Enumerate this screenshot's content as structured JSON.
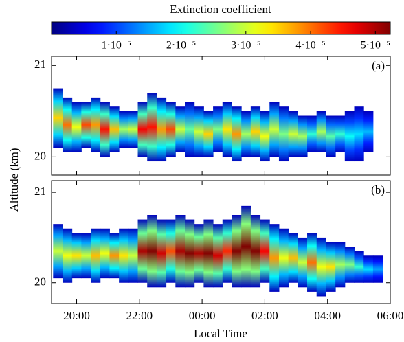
{
  "chart_data": {
    "type": "heatmap",
    "colorbar_label": "Extinction coefficient",
    "zlim": [
      0,
      5.23e-05
    ],
    "zticks": [
      {
        "value": 1e-05,
        "label": "1·10⁻⁵"
      },
      {
        "value": 2e-05,
        "label": "2·10⁻⁵"
      },
      {
        "value": 3e-05,
        "label": "3·10⁻⁵"
      },
      {
        "value": 4e-05,
        "label": "4·10⁻⁵"
      },
      {
        "value": 5e-05,
        "label": "5·10⁻⁵"
      }
    ],
    "x_label": "Local Time",
    "y_label": "Altitude (km)",
    "xlim": [
      19.2,
      30
    ],
    "xticks": [
      {
        "value": 20,
        "label": "20:00"
      },
      {
        "value": 22,
        "label": "22:00"
      },
      {
        "value": 24,
        "label": "00:00"
      },
      {
        "value": 26,
        "label": "02:00"
      },
      {
        "value": 28,
        "label": "04:00"
      },
      {
        "value": 30,
        "label": "06:00"
      }
    ],
    "panels": [
      {
        "label": "(a)",
        "ylim": [
          19.8,
          21.1
        ],
        "yticks": [
          20,
          21
        ],
        "x": [
          19.4,
          19.7,
          20.0,
          20.3,
          20.6,
          20.9,
          21.2,
          21.5,
          21.8,
          22.1,
          22.4,
          22.7,
          23.0,
          23.3,
          23.6,
          23.9,
          24.2,
          24.5,
          24.8,
          25.1,
          25.4,
          25.7,
          26.0,
          26.3,
          26.6,
          26.9,
          27.2,
          27.5,
          27.8,
          28.1,
          28.4,
          28.7,
          29.0,
          29.3
        ],
        "bottom": [
          20.1,
          20.05,
          20.05,
          20.1,
          20.05,
          20.0,
          20.05,
          20.1,
          20.1,
          20.0,
          19.95,
          19.95,
          20.0,
          20.05,
          20.0,
          20.0,
          20.0,
          20.05,
          20.0,
          19.95,
          20.0,
          20.0,
          19.95,
          20.0,
          19.95,
          20.0,
          20.0,
          20.05,
          20.05,
          20.0,
          20.05,
          19.95,
          19.95,
          20.05
        ],
        "top": [
          20.75,
          20.65,
          20.6,
          20.6,
          20.65,
          20.6,
          20.55,
          20.5,
          20.5,
          20.6,
          20.7,
          20.65,
          20.6,
          20.55,
          20.6,
          20.55,
          20.5,
          20.55,
          20.6,
          20.55,
          20.5,
          20.55,
          20.5,
          20.6,
          20.55,
          20.5,
          20.45,
          20.45,
          20.5,
          20.45,
          20.45,
          20.5,
          20.55,
          20.5
        ],
        "values": [
          3.5e-05,
          4e-05,
          3.2e-05,
          4.2e-05,
          3.8e-05,
          4.5e-05,
          3.6e-05,
          2.8e-05,
          3e-05,
          4.6e-05,
          4.5e-05,
          3.8e-05,
          4.2e-05,
          3e-05,
          2.5e-05,
          3e-05,
          3.5e-05,
          2.6e-05,
          3.4e-05,
          3.8e-05,
          2.8e-05,
          3.5e-05,
          3.2e-05,
          3e-05,
          2.6e-05,
          3e-05,
          2.8e-05,
          2.2e-05,
          2.8e-05,
          2.4e-05,
          2.2e-05,
          2e-05,
          1.8e-05,
          1.6e-05
        ]
      },
      {
        "label": "(b)",
        "ylim": [
          19.77,
          21.13
        ],
        "yticks": [
          20,
          21
        ],
        "x": [
          19.4,
          19.7,
          20.0,
          20.3,
          20.6,
          20.9,
          21.2,
          21.5,
          21.8,
          22.1,
          22.4,
          22.7,
          23.0,
          23.3,
          23.6,
          23.9,
          24.2,
          24.5,
          24.8,
          25.1,
          25.4,
          25.7,
          26.0,
          26.3,
          26.6,
          26.9,
          27.2,
          27.5,
          27.8,
          28.1,
          28.4,
          28.7,
          29.0,
          29.3,
          29.6
        ],
        "bottom": [
          20.05,
          20.0,
          20.05,
          20.05,
          20.0,
          20.05,
          20.05,
          20.0,
          20.0,
          20.0,
          19.95,
          19.95,
          20.0,
          19.95,
          19.95,
          20.0,
          19.95,
          19.95,
          20.0,
          19.95,
          19.95,
          19.95,
          20.0,
          19.9,
          19.95,
          20.0,
          19.95,
          19.9,
          19.85,
          19.9,
          19.95,
          20.0,
          20.0,
          20.0,
          20.0
        ],
        "top": [
          20.65,
          20.6,
          20.55,
          20.55,
          20.6,
          20.6,
          20.55,
          20.6,
          20.6,
          20.7,
          20.75,
          20.7,
          20.7,
          20.75,
          20.7,
          20.65,
          20.7,
          20.65,
          20.7,
          20.75,
          20.85,
          20.75,
          20.7,
          20.65,
          20.6,
          20.55,
          20.5,
          20.55,
          20.5,
          20.45,
          20.45,
          20.4,
          20.35,
          20.3,
          20.3
        ],
        "values": [
          3e-05,
          3.2e-05,
          3.4e-05,
          3e-05,
          3.6e-05,
          3.2e-05,
          3.8e-05,
          3.4e-05,
          3e-05,
          5e-05,
          5.2e-05,
          4.8e-05,
          4.2e-05,
          5e-05,
          5.2e-05,
          5e-05,
          5.2e-05,
          4.8e-05,
          4.4e-05,
          5.2e-05,
          5.3e-05,
          5.2e-05,
          4.6e-05,
          3.8e-05,
          3.2e-05,
          3.6e-05,
          3e-05,
          4e-05,
          3.2e-05,
          3.4e-05,
          2.8e-05,
          2.6e-05,
          2.2e-05,
          1.8e-05,
          1.5e-05
        ]
      }
    ]
  }
}
